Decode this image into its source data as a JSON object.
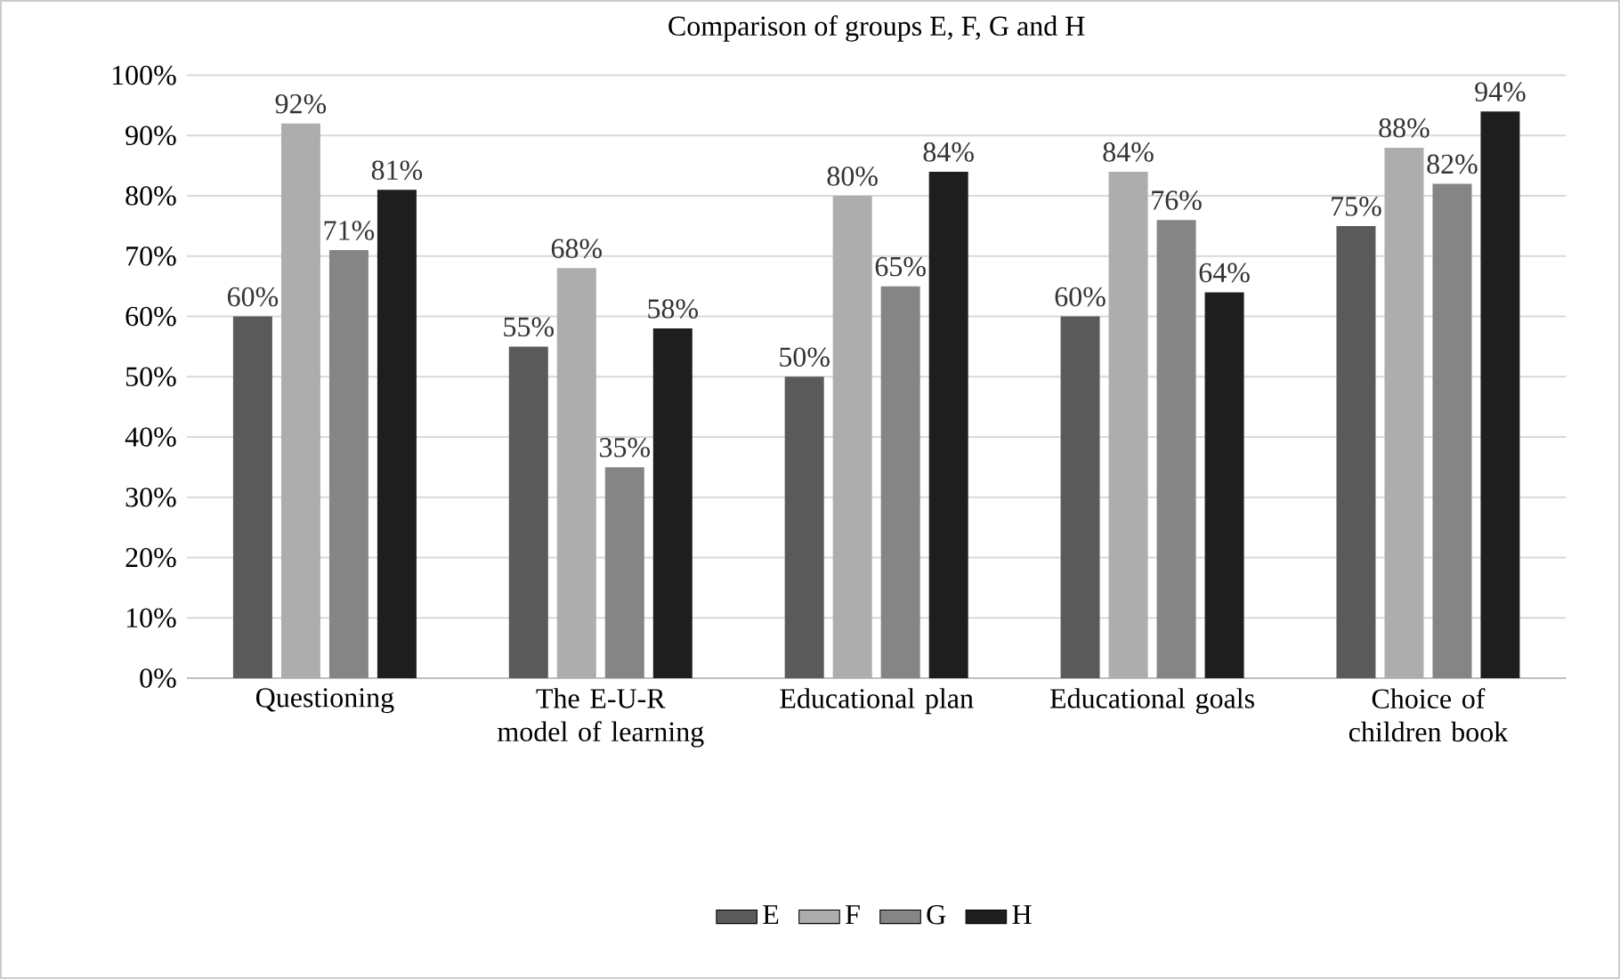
{
  "chart_data": {
    "type": "bar",
    "title": "Comparison of groups E, F, G and H",
    "categories": [
      "Questioning",
      "The E-U-R model of learning",
      "Educational plan",
      "Educational goals",
      "Choice of children book"
    ],
    "series": [
      {
        "name": "E",
        "color": "#5a5a5a",
        "values": [
          60,
          55,
          50,
          60,
          75
        ],
        "value_labels": [
          "60%",
          "55%",
          "50%",
          "60%",
          "75%"
        ]
      },
      {
        "name": "F",
        "color": "#adadad",
        "values": [
          92,
          68,
          80,
          84,
          88
        ],
        "value_labels": [
          "92%",
          "68%",
          "80%",
          "84%",
          "88%"
        ]
      },
      {
        "name": "G",
        "color": "#858585",
        "values": [
          71,
          35,
          65,
          76,
          82
        ],
        "value_labels": [
          "71%",
          "35%",
          "65%",
          "76%",
          "82%"
        ]
      },
      {
        "name": "H",
        "color": "#1e1e1e",
        "values": [
          81,
          58,
          84,
          64,
          94
        ],
        "value_labels": [
          "81%",
          "58%",
          "84%",
          "64%",
          "94%"
        ]
      }
    ],
    "ylim": [
      0,
      100
    ],
    "yticks": [
      {
        "value": 0,
        "label": "0%"
      },
      {
        "value": 10,
        "label": "10%"
      },
      {
        "value": 20,
        "label": "20%"
      },
      {
        "value": 30,
        "label": "30%"
      },
      {
        "value": 40,
        "label": "40%"
      },
      {
        "value": 50,
        "label": "50%"
      },
      {
        "value": 60,
        "label": "60%"
      },
      {
        "value": 70,
        "label": "70%"
      },
      {
        "value": 80,
        "label": "80%"
      },
      {
        "value": 90,
        "label": "90%"
      },
      {
        "value": 100,
        "label": "100%"
      }
    ],
    "grid": "y",
    "legend": "bottom"
  }
}
